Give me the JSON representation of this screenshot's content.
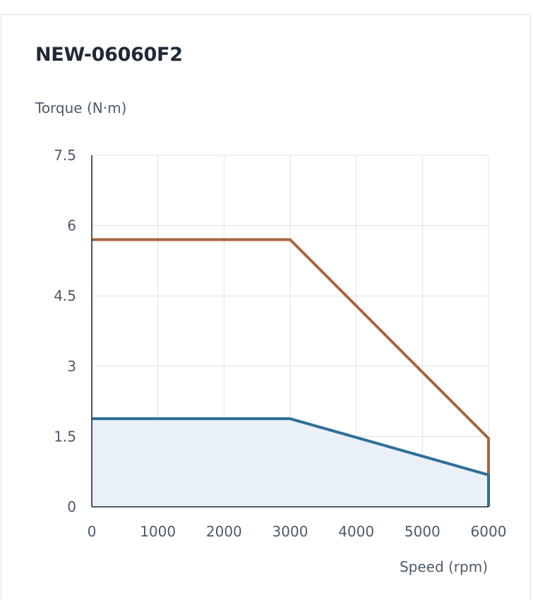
{
  "chart_data": {
    "type": "area",
    "title": "NEW-06060F2",
    "ylabel": "Torque (N·m)",
    "xlabel": "Speed (rpm)",
    "xlim": [
      0,
      6000
    ],
    "ylim": [
      0,
      7.5
    ],
    "x_ticks": [
      "0",
      "1000",
      "2000",
      "3000",
      "4000",
      "5000",
      "6000"
    ],
    "y_ticks": [
      "0",
      "1.5",
      "3",
      "4.5",
      "6",
      "7.5"
    ],
    "grid": true,
    "series": [
      {
        "style": "line",
        "color": "#a8653c",
        "points": [
          [
            0,
            5.7
          ],
          [
            3000,
            5.7
          ],
          [
            6000,
            1.46
          ],
          [
            6000,
            0
          ]
        ]
      },
      {
        "style": "area",
        "color": "#2e6e99",
        "fill": "#e9f0f7",
        "points": [
          [
            0,
            1.88
          ],
          [
            3000,
            1.88
          ],
          [
            6000,
            0.68
          ],
          [
            6000,
            0
          ]
        ]
      }
    ]
  }
}
